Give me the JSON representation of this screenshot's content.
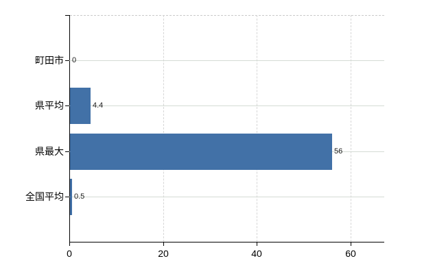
{
  "chart": {
    "background": "#ffffff",
    "bar_color": "#4271a7",
    "axis_color": "#000000",
    "h_gridline_color": "#d4dbd4",
    "v_gridline_color": "#d6d6d6",
    "top_border_color": "#c9c9c9",
    "text_color": "#000000"
  },
  "chart_data": {
    "type": "bar",
    "orientation": "horizontal",
    "title": "",
    "xlabel": "",
    "ylabel": "",
    "categories": [
      "町田市",
      "県平均",
      "県最大",
      "全国平均"
    ],
    "values": [
      0,
      4.4,
      56,
      0.5
    ],
    "data_labels": [
      "0",
      "4.4",
      "56",
      "0.5"
    ],
    "x_ticks": [
      0,
      20,
      40,
      60
    ],
    "x_tick_labels": [
      "0",
      "20",
      "40",
      "60"
    ],
    "xlim": [
      0,
      67.25
    ],
    "grid": true,
    "legend": false
  }
}
